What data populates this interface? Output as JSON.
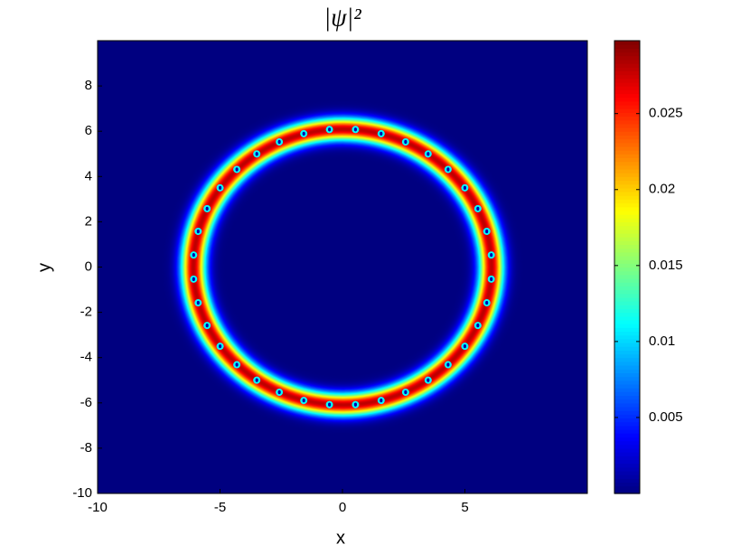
{
  "chart_data": {
    "type": "density-map",
    "title": "|ψ|²",
    "x_label": "x",
    "y_label": "y",
    "xlim": [
      -10,
      10
    ],
    "ylim": [
      -10,
      10
    ],
    "xticks": [
      -10,
      -5,
      0,
      5
    ],
    "yticks": [
      -10,
      -8,
      -6,
      -4,
      -2,
      0,
      2,
      4,
      6,
      8
    ],
    "clim": [
      0,
      0.0298
    ],
    "cticks": [
      0.005,
      0.01,
      0.015,
      0.02,
      0.025
    ],
    "colormap": "jet",
    "ring": {
      "center_x": 0,
      "center_y": 0,
      "radius": 6.1,
      "width": 0.5,
      "peak": 0.028,
      "vortex_count": 36
    }
  }
}
